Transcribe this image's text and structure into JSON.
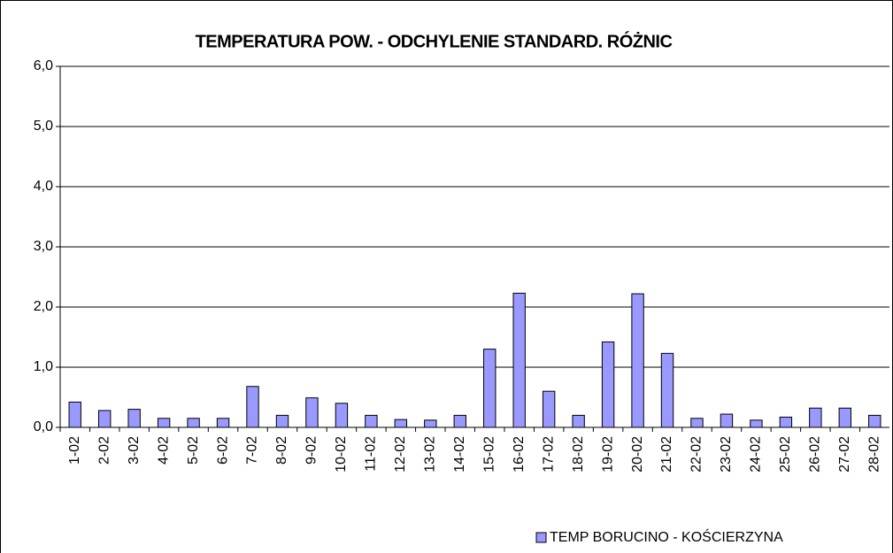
{
  "chart_data": {
    "type": "bar",
    "title": "TEMPERATURA POW. - ODCHYLENIE STANDARD. RÓŻNIC",
    "categories": [
      "1-02",
      "2-02",
      "3-02",
      "4-02",
      "5-02",
      "6-02",
      "7-02",
      "8-02",
      "9-02",
      "10-02",
      "11-02",
      "12-02",
      "13-02",
      "14-02",
      "15-02",
      "16-02",
      "17-02",
      "18-02",
      "19-02",
      "20-02",
      "21-02",
      "22-02",
      "23-02",
      "24-02",
      "25-02",
      "26-02",
      "27-02",
      "28-02"
    ],
    "series": [
      {
        "name": "TEMP BORUCINO - KOŚCIERZYNA",
        "color": "#9999ff",
        "values": [
          0.42,
          0.28,
          0.3,
          0.15,
          0.15,
          0.15,
          0.68,
          0.2,
          0.49,
          0.4,
          0.2,
          0.13,
          0.12,
          0.2,
          1.3,
          2.23,
          0.6,
          0.2,
          1.42,
          2.22,
          1.23,
          0.15,
          0.22,
          0.12,
          0.17,
          0.32,
          0.32,
          0.2
        ]
      }
    ],
    "ylim": [
      0,
      6
    ],
    "yticks": [
      {
        "value": 0,
        "label": "0,0"
      },
      {
        "value": 1,
        "label": "1,0"
      },
      {
        "value": 2,
        "label": "2,0"
      },
      {
        "value": 3,
        "label": "3,0"
      },
      {
        "value": 4,
        "label": "4,0"
      },
      {
        "value": 5,
        "label": "5,0"
      },
      {
        "value": 6,
        "label": "6,0"
      }
    ],
    "grid": true,
    "legend": "bottom-right"
  }
}
